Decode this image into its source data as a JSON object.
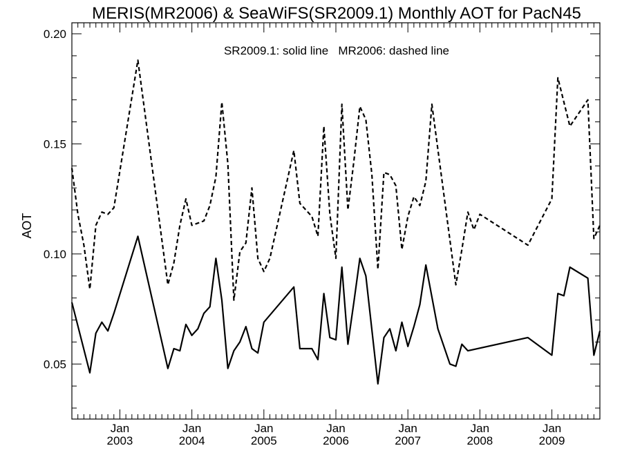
{
  "chart_data": {
    "type": "line",
    "title": "MERIS(MR2006) & SeaWiFS(SR2009.1) Monthly AOT for PacN45",
    "annotation": "SR2009.1: solid line   MR2006: dashed line",
    "ylabel": "AOT",
    "xlabel": "",
    "xlim": [
      "2002-05-01",
      "2009-09-01"
    ],
    "ylim": [
      0.025,
      0.205
    ],
    "yticks": [
      {
        "value": 0.05,
        "label": "0.05"
      },
      {
        "value": 0.1,
        "label": "0.10"
      },
      {
        "value": 0.15,
        "label": "0.15"
      },
      {
        "value": 0.2,
        "label": "0.20"
      }
    ],
    "xticks": [
      {
        "date": "2003-01-01",
        "month": "Jan",
        "year": "2003"
      },
      {
        "date": "2004-01-01",
        "month": "Jan",
        "year": "2004"
      },
      {
        "date": "2005-01-01",
        "month": "Jan",
        "year": "2005"
      },
      {
        "date": "2006-01-01",
        "month": "Jan",
        "year": "2006"
      },
      {
        "date": "2007-01-01",
        "month": "Jan",
        "year": "2007"
      },
      {
        "date": "2008-01-01",
        "month": "Jan",
        "year": "2008"
      },
      {
        "date": "2009-01-01",
        "month": "Jan",
        "year": "2009"
      }
    ],
    "series": [
      {
        "name": "MR2006",
        "style": "dashed",
        "color": "#000000",
        "points": [
          [
            "2002-05-01",
            0.139
          ],
          [
            "2002-06-01",
            0.118
          ],
          [
            "2002-07-01",
            0.104
          ],
          [
            "2002-08-01",
            0.084
          ],
          [
            "2002-09-01",
            0.113
          ],
          [
            "2002-10-01",
            0.119
          ],
          [
            "2002-11-01",
            0.118
          ],
          [
            "2002-12-01",
            0.121
          ],
          [
            "2003-04-01",
            0.188
          ],
          [
            "2003-09-01",
            0.086
          ],
          [
            "2003-10-01",
            0.096
          ],
          [
            "2003-11-01",
            0.113
          ],
          [
            "2003-12-01",
            0.125
          ],
          [
            "2004-01-01",
            0.113
          ],
          [
            "2004-02-01",
            0.114
          ],
          [
            "2004-03-01",
            0.115
          ],
          [
            "2004-04-01",
            0.122
          ],
          [
            "2004-05-01",
            0.135
          ],
          [
            "2004-06-01",
            0.169
          ],
          [
            "2004-07-01",
            0.141
          ],
          [
            "2004-08-01",
            0.079
          ],
          [
            "2004-09-01",
            0.101
          ],
          [
            "2004-10-01",
            0.105
          ],
          [
            "2004-11-01",
            0.13
          ],
          [
            "2004-12-01",
            0.098
          ],
          [
            "2005-01-01",
            0.092
          ],
          [
            "2005-02-01",
            0.098
          ],
          [
            "2005-06-01",
            0.147
          ],
          [
            "2005-07-01",
            0.123
          ],
          [
            "2005-08-01",
            0.12
          ],
          [
            "2005-09-01",
            0.117
          ],
          [
            "2005-10-01",
            0.108
          ],
          [
            "2005-11-01",
            0.158
          ],
          [
            "2005-12-01",
            0.118
          ],
          [
            "2006-01-01",
            0.098
          ],
          [
            "2006-02-01",
            0.168
          ],
          [
            "2006-03-01",
            0.12
          ],
          [
            "2006-04-01",
            0.142
          ],
          [
            "2006-05-01",
            0.167
          ],
          [
            "2006-06-01",
            0.161
          ],
          [
            "2006-07-01",
            0.136
          ],
          [
            "2006-08-01",
            0.093
          ],
          [
            "2006-09-01",
            0.137
          ],
          [
            "2006-10-01",
            0.136
          ],
          [
            "2006-11-01",
            0.131
          ],
          [
            "2006-12-01",
            0.102
          ],
          [
            "2007-01-01",
            0.117
          ],
          [
            "2007-02-01",
            0.126
          ],
          [
            "2007-03-01",
            0.122
          ],
          [
            "2007-04-01",
            0.133
          ],
          [
            "2007-05-01",
            0.168
          ],
          [
            "2007-09-01",
            0.086
          ],
          [
            "2007-10-01",
            0.102
          ],
          [
            "2007-11-01",
            0.119
          ],
          [
            "2007-12-01",
            0.111
          ],
          [
            "2008-01-01",
            0.118
          ],
          [
            "2008-09-01",
            0.104
          ],
          [
            "2009-01-01",
            0.125
          ],
          [
            "2009-02-01",
            0.18
          ],
          [
            "2009-04-01",
            0.158
          ],
          [
            "2009-07-01",
            0.17
          ],
          [
            "2009-08-01",
            0.107
          ],
          [
            "2009-09-01",
            0.113
          ]
        ]
      },
      {
        "name": "SR2009.1",
        "style": "solid",
        "color": "#000000",
        "points": [
          [
            "2002-05-01",
            0.078
          ],
          [
            "2002-08-01",
            0.046
          ],
          [
            "2002-09-01",
            0.064
          ],
          [
            "2002-10-01",
            0.069
          ],
          [
            "2002-11-01",
            0.065
          ],
          [
            "2002-12-01",
            0.073
          ],
          [
            "2003-04-01",
            0.108
          ],
          [
            "2003-09-01",
            0.048
          ],
          [
            "2003-10-01",
            0.057
          ],
          [
            "2003-11-01",
            0.056
          ],
          [
            "2003-12-01",
            0.068
          ],
          [
            "2004-01-01",
            0.063
          ],
          [
            "2004-02-01",
            0.066
          ],
          [
            "2004-03-01",
            0.073
          ],
          [
            "2004-04-01",
            0.076
          ],
          [
            "2004-05-01",
            0.098
          ],
          [
            "2004-06-01",
            0.079
          ],
          [
            "2004-07-01",
            0.048
          ],
          [
            "2004-08-01",
            0.056
          ],
          [
            "2004-09-01",
            0.06
          ],
          [
            "2004-10-01",
            0.067
          ],
          [
            "2004-11-01",
            0.057
          ],
          [
            "2004-12-01",
            0.055
          ],
          [
            "2005-01-01",
            0.069
          ],
          [
            "2005-06-01",
            0.085
          ],
          [
            "2005-07-01",
            0.057
          ],
          [
            "2005-08-01",
            0.057
          ],
          [
            "2005-09-01",
            0.057
          ],
          [
            "2005-10-01",
            0.052
          ],
          [
            "2005-11-01",
            0.082
          ],
          [
            "2005-12-01",
            0.062
          ],
          [
            "2006-01-01",
            0.061
          ],
          [
            "2006-02-01",
            0.094
          ],
          [
            "2006-03-01",
            0.059
          ],
          [
            "2006-04-01",
            0.078
          ],
          [
            "2006-05-01",
            0.098
          ],
          [
            "2006-06-01",
            0.09
          ],
          [
            "2006-08-01",
            0.041
          ],
          [
            "2006-09-01",
            0.062
          ],
          [
            "2006-10-01",
            0.066
          ],
          [
            "2006-11-01",
            0.056
          ],
          [
            "2006-12-01",
            0.069
          ],
          [
            "2007-01-01",
            0.058
          ],
          [
            "2007-02-01",
            0.067
          ],
          [
            "2007-03-01",
            0.077
          ],
          [
            "2007-04-01",
            0.095
          ],
          [
            "2007-06-01",
            0.066
          ],
          [
            "2007-08-01",
            0.05
          ],
          [
            "2007-09-01",
            0.049
          ],
          [
            "2007-10-01",
            0.059
          ],
          [
            "2007-11-01",
            0.056
          ],
          [
            "2008-09-01",
            0.062
          ],
          [
            "2009-01-01",
            0.054
          ],
          [
            "2009-02-01",
            0.082
          ],
          [
            "2009-03-01",
            0.081
          ],
          [
            "2009-04-01",
            0.094
          ],
          [
            "2009-07-01",
            0.089
          ],
          [
            "2009-08-01",
            0.054
          ],
          [
            "2009-09-01",
            0.065
          ]
        ]
      }
    ]
  }
}
